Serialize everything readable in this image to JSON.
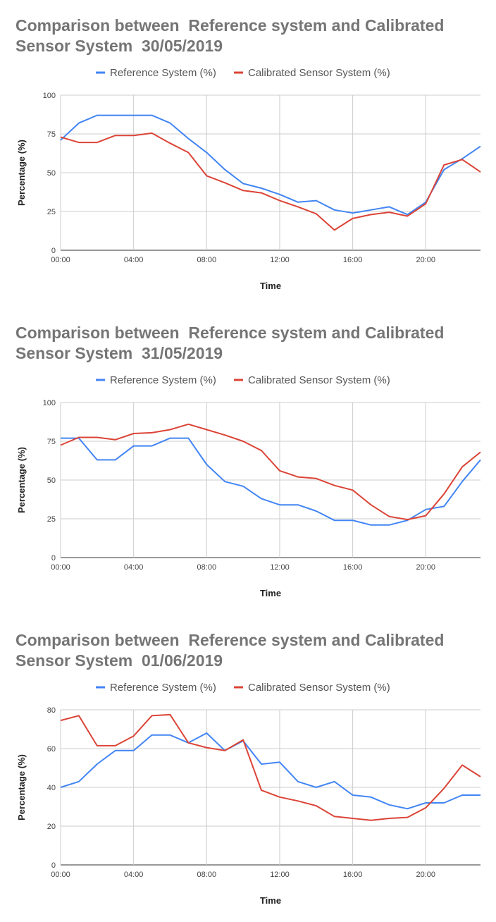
{
  "chart_data": [
    {
      "type": "line",
      "title": "Comparison between  Reference system and Calibrated Sensor System  30/05/2019",
      "xlabel": "Time",
      "ylabel": "Percentage (%)",
      "ylim": [
        0,
        100
      ],
      "yticks": [
        "0",
        "25",
        "50",
        "75",
        "100"
      ],
      "xticks": [
        "00:00",
        "04:00",
        "08:00",
        "12:00",
        "16:00",
        "20:00"
      ],
      "grid": true,
      "legend": "top",
      "x": [
        0,
        1,
        2,
        3,
        4,
        5,
        6,
        7,
        8,
        9,
        10,
        11,
        12,
        13,
        14,
        15,
        16,
        17,
        18,
        19,
        20,
        21,
        22,
        23
      ],
      "series": [
        {
          "name": "Reference System (%)",
          "color": "#4285f4",
          "values": [
            71,
            82,
            87,
            87,
            87,
            87,
            82,
            72,
            63,
            52,
            43,
            40,
            36,
            31,
            32,
            26,
            24,
            26,
            28,
            23,
            31,
            52,
            59,
            67
          ]
        },
        {
          "name": "Calibrated Sensor System (%)",
          "color": "#db4437",
          "values": [
            73,
            69.5,
            69.5,
            74,
            74,
            75.5,
            69,
            63,
            48,
            43.5,
            38.5,
            37,
            32,
            28,
            23.5,
            13,
            20.5,
            23,
            24.5,
            22,
            30,
            55,
            58.5,
            50.5
          ]
        }
      ]
    },
    {
      "type": "line",
      "title": "Comparison between  Reference system and Calibrated Sensor System  31/05/2019",
      "xlabel": "Time",
      "ylabel": "Percentage (%)",
      "ylim": [
        0,
        100
      ],
      "yticks": [
        "0",
        "25",
        "50",
        "75",
        "100"
      ],
      "xticks": [
        "00:00",
        "04:00",
        "08:00",
        "12:00",
        "16:00",
        "20:00"
      ],
      "grid": true,
      "legend": "top",
      "x": [
        0,
        1,
        2,
        3,
        4,
        5,
        6,
        7,
        8,
        9,
        10,
        11,
        12,
        13,
        14,
        15,
        16,
        17,
        18,
        19,
        20,
        21,
        22,
        23
      ],
      "series": [
        {
          "name": "Reference System (%)",
          "color": "#4285f4",
          "values": [
            77,
            77,
            63,
            63,
            72,
            72,
            77,
            77,
            60,
            49,
            46,
            38,
            34,
            34,
            30,
            24,
            24,
            21,
            21,
            24,
            31,
            33,
            49,
            63
          ]
        },
        {
          "name": "Calibrated Sensor System (%)",
          "color": "#db4437",
          "values": [
            72.5,
            77.5,
            77.5,
            76,
            80,
            80.5,
            82.5,
            86,
            82.5,
            79,
            75,
            69,
            56,
            52,
            51,
            46.5,
            43.5,
            34,
            26.5,
            24.5,
            27,
            41,
            58.5,
            68
          ]
        }
      ]
    },
    {
      "type": "line",
      "title": "Comparison between  Reference system and Calibrated Sensor System  01/06/2019",
      "xlabel": "Time",
      "ylabel": "Percentage (%)",
      "ylim": [
        0,
        80
      ],
      "yticks": [
        "0",
        "20",
        "40",
        "60",
        "80"
      ],
      "xticks": [
        "00:00",
        "04:00",
        "08:00",
        "12:00",
        "16:00",
        "20:00"
      ],
      "grid": true,
      "legend": "top",
      "x": [
        0,
        1,
        2,
        3,
        4,
        5,
        6,
        7,
        8,
        9,
        10,
        11,
        12,
        13,
        14,
        15,
        16,
        17,
        18,
        19,
        20,
        21,
        22,
        23
      ],
      "series": [
        {
          "name": "Reference System (%)",
          "color": "#4285f4",
          "values": [
            40,
            43,
            52,
            59,
            59,
            67,
            67,
            63,
            68,
            59,
            64,
            52,
            53,
            43,
            40,
            43,
            36,
            35,
            31,
            29,
            32,
            32,
            36,
            36
          ]
        },
        {
          "name": "Calibrated Sensor System (%)",
          "color": "#db4437",
          "values": [
            74.5,
            77,
            61.5,
            61.5,
            66.5,
            77,
            77.5,
            63,
            60.5,
            59,
            64.5,
            38.5,
            35,
            33,
            30.5,
            25,
            24,
            23,
            24,
            24.5,
            29.5,
            39.5,
            51.5,
            45.5
          ]
        }
      ]
    }
  ]
}
